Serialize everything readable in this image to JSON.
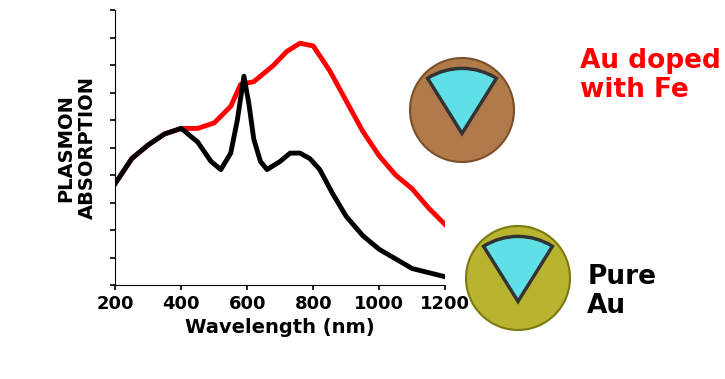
{
  "chart_data": {
    "type": "line",
    "x_label": "Wavelength (nm)",
    "y_label": "PLASMON\nABSORPTION",
    "xlim": [
      200,
      1200
    ],
    "xticks": [
      200,
      400,
      600,
      800,
      1000,
      1200
    ],
    "ylim": [
      0,
      10
    ],
    "yticks": [
      0,
      1,
      2,
      3,
      4,
      5,
      6,
      7,
      8,
      9,
      10
    ],
    "tick_labels": "x",
    "series": [
      {
        "name": "Au doped\nwith Fe",
        "color": "#ff0000",
        "x": [
          200,
          250,
          300,
          350,
          400,
          450,
          500,
          550,
          580,
          620,
          680,
          720,
          760,
          800,
          850,
          900,
          950,
          1000,
          1050,
          1100,
          1150,
          1200
        ],
        "values": [
          3.7,
          4.6,
          5.1,
          5.5,
          5.7,
          5.7,
          5.9,
          6.5,
          7.3,
          7.4,
          8.0,
          8.5,
          8.8,
          8.7,
          7.8,
          6.7,
          5.6,
          4.7,
          4.0,
          3.5,
          2.8,
          2.2
        ]
      },
      {
        "name": "Pure\nAu",
        "color": "#000000",
        "x": [
          200,
          250,
          300,
          350,
          400,
          450,
          490,
          520,
          550,
          570,
          590,
          605,
          620,
          640,
          660,
          700,
          730,
          760,
          790,
          820,
          860,
          900,
          950,
          1000,
          1100,
          1200
        ],
        "values": [
          3.7,
          4.6,
          5.1,
          5.5,
          5.7,
          5.2,
          4.5,
          4.2,
          4.8,
          6.0,
          7.6,
          6.6,
          5.3,
          4.5,
          4.2,
          4.5,
          4.8,
          4.8,
          4.6,
          4.2,
          3.3,
          2.5,
          1.8,
          1.3,
          0.6,
          0.3
        ]
      }
    ]
  }
}
